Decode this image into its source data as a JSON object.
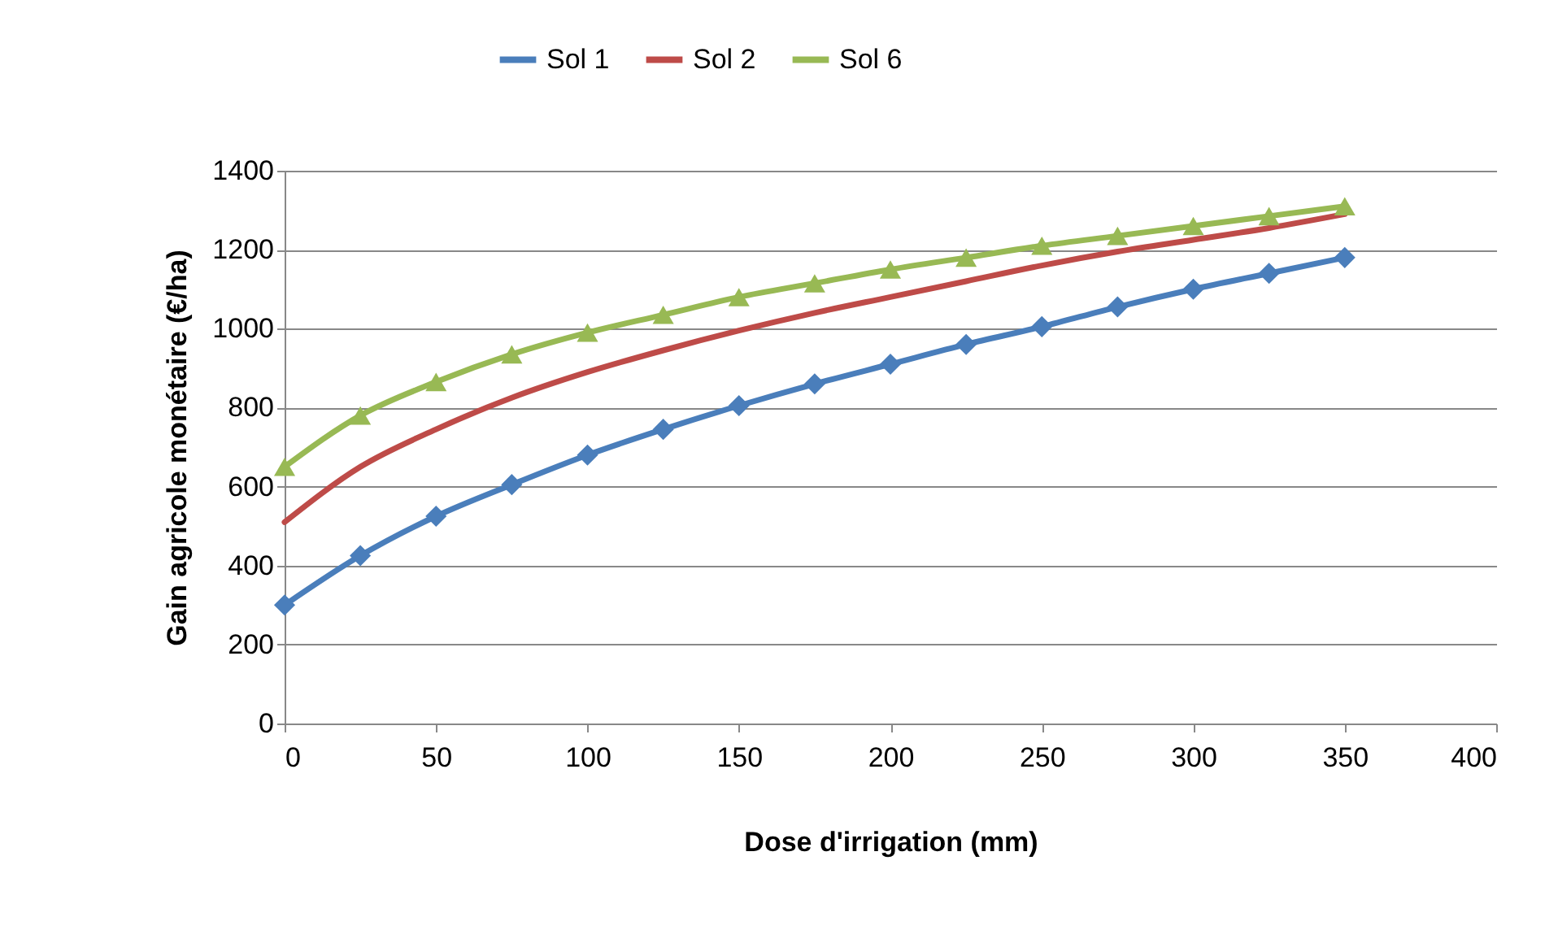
{
  "chart_data": {
    "type": "line",
    "xlabel": "Dose d'irrigation (mm)",
    "ylabel": "Gain agricole monétaire (€/ha)",
    "x": [
      0,
      25,
      50,
      75,
      100,
      125,
      150,
      175,
      200,
      225,
      250,
      275,
      300,
      325,
      350
    ],
    "series": [
      {
        "name": "Sol 1",
        "color": "#4a7ebb",
        "marker": "diamond",
        "values": [
          300,
          425,
          525,
          605,
          680,
          745,
          805,
          860,
          910,
          960,
          1005,
          1055,
          1100,
          1140,
          1180
        ]
      },
      {
        "name": "Sol 2",
        "color": "#be4b48",
        "marker": "none",
        "values": [
          510,
          650,
          745,
          825,
          890,
          945,
          995,
          1040,
          1080,
          1120,
          1160,
          1195,
          1225,
          1255,
          1290
        ]
      },
      {
        "name": "Sol 6",
        "color": "#98b954",
        "marker": "triangle",
        "values": [
          650,
          780,
          865,
          935,
          990,
          1035,
          1080,
          1115,
          1150,
          1180,
          1210,
          1235,
          1260,
          1285,
          1310
        ]
      }
    ],
    "xlim": [
      0,
      400
    ],
    "xticks": [
      0,
      50,
      100,
      150,
      200,
      250,
      300,
      350,
      400
    ],
    "ylim": [
      0,
      1400
    ],
    "yticks": [
      0,
      200,
      400,
      600,
      800,
      1000,
      1200,
      1400
    ],
    "grid": "y",
    "legend": "top",
    "line_style": "solid"
  }
}
